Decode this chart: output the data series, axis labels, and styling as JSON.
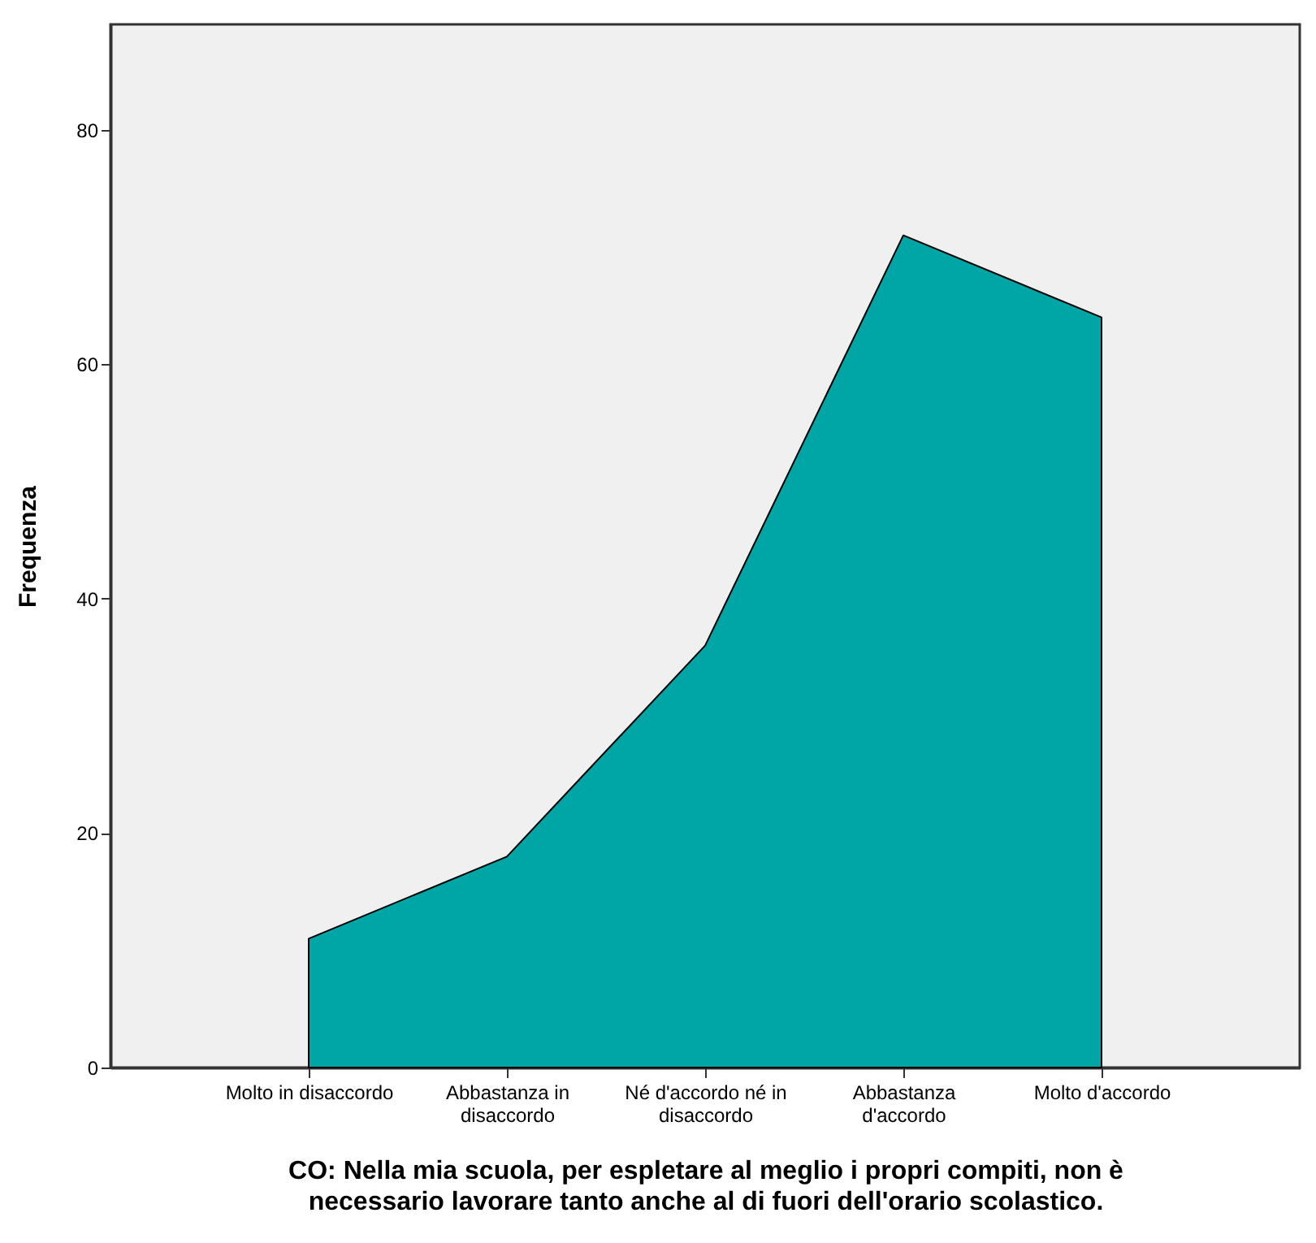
{
  "chart_data": {
    "type": "area",
    "xlabel": "CO: Nella mia scuola, per espletare al meglio i propri compiti, non è\nnecessario lavorare tanto anche al di fuori dell'orario scolastico.",
    "ylabel": "Frequenza",
    "categories": [
      "Molto in disaccordo",
      "Abbastanza in\ndisaccordo",
      "Né d'accordo né in\ndisaccordo",
      "Abbastanza\nd'accordo",
      "Molto d'accordo"
    ],
    "series": [
      {
        "color": "#00a5a5",
        "values": [
          11,
          18,
          36,
          71,
          64
        ]
      }
    ],
    "ylim": [
      0,
      89
    ],
    "yticks": [
      0,
      20,
      40,
      60,
      80
    ],
    "grid": false
  }
}
